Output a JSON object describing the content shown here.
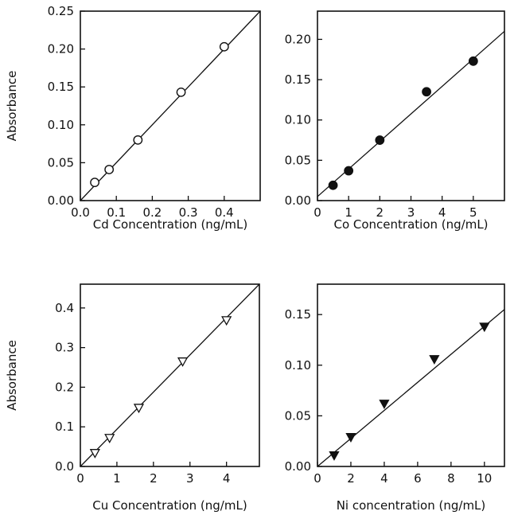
{
  "chart_data": [
    {
      "type": "scatter",
      "xlabel": "Cd Concentration (ng/mL)",
      "ylabel": "Absorbance",
      "xlim": [
        0.0,
        0.5
      ],
      "ylim": [
        0.0,
        0.25
      ],
      "xticks": [
        "0.0",
        "0.1",
        "0.2",
        "0.3",
        "0.4"
      ],
      "yticks": [
        "0.00",
        "0.05",
        "0.10",
        "0.15",
        "0.20",
        "0.25"
      ],
      "marker": "open-circle",
      "grid": false,
      "series": [
        {
          "x": [
            0.04,
            0.08,
            0.16,
            0.28,
            0.4
          ],
          "y": [
            0.024,
            0.041,
            0.08,
            0.143,
            0.203
          ]
        }
      ],
      "fit_line": {
        "x": [
          0.0,
          0.5
        ],
        "y": [
          0.0,
          0.25
        ]
      }
    },
    {
      "type": "scatter",
      "xlabel": "Co Concentration (ng/mL)",
      "ylabel": "",
      "xlim": [
        0,
        6
      ],
      "ylim": [
        0.0,
        0.235
      ],
      "xticks": [
        "0",
        "1",
        "2",
        "3",
        "4",
        "5"
      ],
      "yticks": [
        "0.00",
        "0.05",
        "0.10",
        "0.15",
        "0.20"
      ],
      "marker": "filled-circle",
      "grid": false,
      "series": [
        {
          "x": [
            0.5,
            1.0,
            2.0,
            3.5,
            5.0
          ],
          "y": [
            0.019,
            0.037,
            0.075,
            0.135,
            0.173
          ]
        }
      ],
      "fit_line": {
        "x": [
          0.0,
          6.0
        ],
        "y": [
          0.005,
          0.21
        ]
      }
    },
    {
      "type": "scatter",
      "xlabel": "Cu Concentration (ng/mL)",
      "ylabel": "Absorbance",
      "xlim": [
        0,
        4.9
      ],
      "ylim": [
        0.0,
        0.46
      ],
      "xticks": [
        "0",
        "1",
        "2",
        "3",
        "4"
      ],
      "yticks": [
        "0.0",
        "0.1",
        "0.2",
        "0.3",
        "0.4"
      ],
      "marker": "open-triangle-down",
      "grid": false,
      "series": [
        {
          "x": [
            0.4,
            0.8,
            1.6,
            2.8,
            4.0
          ],
          "y": [
            0.034,
            0.072,
            0.148,
            0.265,
            0.369
          ]
        }
      ],
      "fit_line": {
        "x": [
          0.0,
          4.9
        ],
        "y": [
          0.0,
          0.46
        ]
      }
    },
    {
      "type": "scatter",
      "xlabel": "Ni concentration (ng/mL)",
      "ylabel": "",
      "xlim": [
        0,
        11.2
      ],
      "ylim": [
        0.0,
        0.18
      ],
      "xticks": [
        "0",
        "2",
        "4",
        "6",
        "8",
        "10"
      ],
      "yticks": [
        "0.00",
        "0.05",
        "0.10",
        "0.15"
      ],
      "marker": "filled-triangle-down",
      "grid": false,
      "series": [
        {
          "x": [
            1,
            2,
            4,
            7,
            10
          ],
          "y": [
            0.011,
            0.029,
            0.062,
            0.106,
            0.138
          ]
        }
      ],
      "fit_line": {
        "x": [
          0.0,
          11.2
        ],
        "y": [
          0.0,
          0.155
        ]
      }
    }
  ]
}
